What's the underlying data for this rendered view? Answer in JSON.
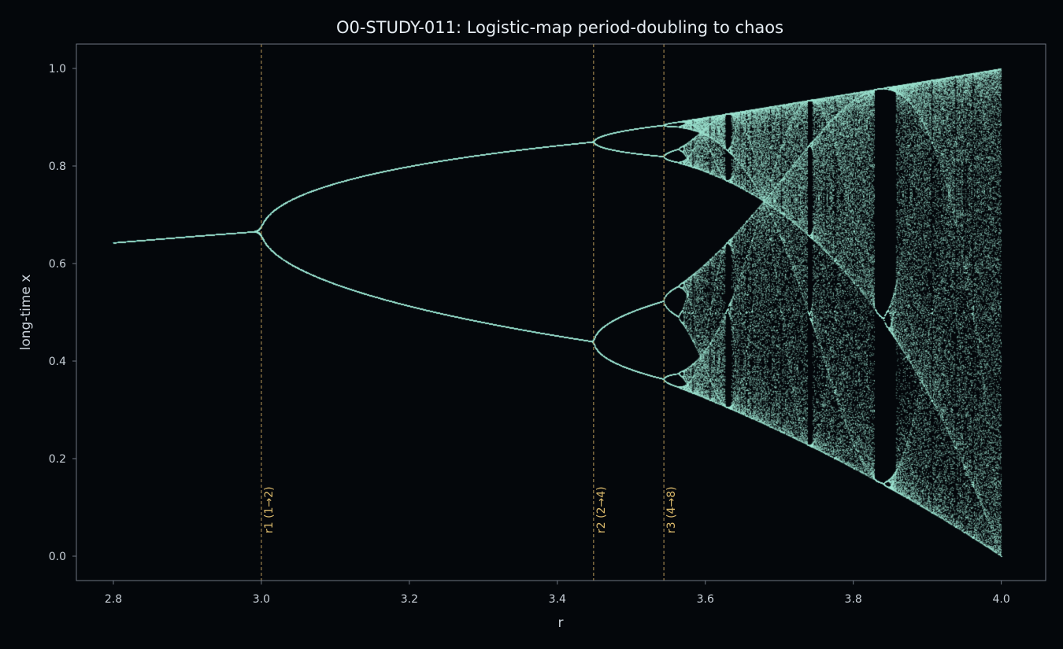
{
  "chart_data": {
    "type": "scatter",
    "title": "O0-STUDY-011: Logistic-map period-doubling to chaos",
    "xlabel": "r",
    "ylabel": "long-time x",
    "xlim": [
      2.75,
      4.06
    ],
    "ylim": [
      -0.05,
      1.05
    ],
    "xticks": [
      2.8,
      3.0,
      3.2,
      3.4,
      3.6,
      3.8,
      4.0
    ],
    "xtick_labels": [
      "2.8",
      "3.0",
      "3.2",
      "3.4",
      "3.6",
      "3.8",
      "4.0"
    ],
    "yticks": [
      0.0,
      0.2,
      0.4,
      0.6,
      0.8,
      1.0
    ],
    "ytick_labels": [
      "0.0",
      "0.2",
      "0.4",
      "0.6",
      "0.8",
      "1.0"
    ],
    "grid": false,
    "series": [
      {
        "kind": "logistic-map bifurcation points",
        "r_range": [
          2.8,
          4.0
        ],
        "color": "#9fe6d3"
      }
    ],
    "markers": [
      {
        "r": 3.0,
        "label": "r1 (1→2)"
      },
      {
        "r": 3.449,
        "label": "r2 (2→4)"
      },
      {
        "r": 3.544,
        "label": "r3 (4→8)"
      }
    ],
    "colors": {
      "background": "#04070b",
      "axes_frame": "#6e7681",
      "text": "#c9d1d9",
      "points": "#9fe6d3",
      "markers": "#c7a560"
    }
  }
}
